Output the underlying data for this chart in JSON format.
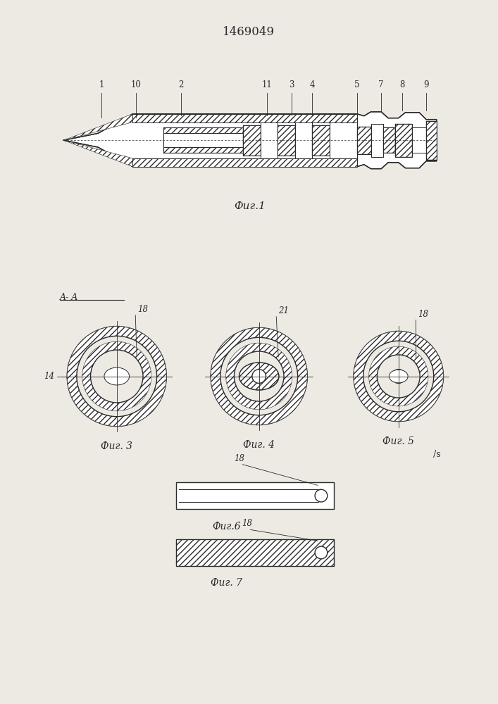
{
  "title": "1469049",
  "bg_color": "#ede9e3",
  "line_color": "#2a2a2a",
  "fig1_caption": "Фиг.1",
  "fig3_caption": "Фиг. 3",
  "fig4_caption": "Фиг. 4",
  "fig5_caption": "Фиг. 5",
  "fig6_caption": "Фиг.6",
  "fig7_caption": "Фиг. 7",
  "aa_label": "A- A"
}
